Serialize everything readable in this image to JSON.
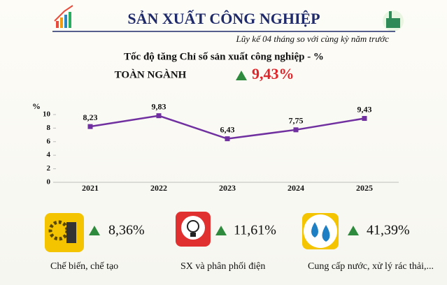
{
  "header": {
    "title": "SẢN XUẤT CÔNG NGHIỆP",
    "subtitle": "Lũy kế 04 tháng so với cùng kỳ năm trước"
  },
  "headline": {
    "label": "TOÀN NGÀNH",
    "value": "9,43%"
  },
  "chart_data": {
    "type": "line",
    "title": "Tốc độ tăng Chỉ số sản xuất công nghiệp - %",
    "y_unit": "%",
    "categories": [
      "2021",
      "2022",
      "2023",
      "2024",
      "2025"
    ],
    "values": [
      8.23,
      9.83,
      6.43,
      7.75,
      9.43
    ],
    "value_labels": [
      "8,23",
      "9,83",
      "6,43",
      "7,75",
      "9,43"
    ],
    "color": "#7030a0",
    "ylim": [
      0,
      10
    ],
    "yticks": [
      0,
      2,
      4,
      6,
      8,
      10
    ],
    "grid": false
  },
  "sectors": [
    {
      "value": "8,36%",
      "name": "Chế biến, chế tạo"
    },
    {
      "value": "11,61%",
      "name": "SX và phân phối điện"
    },
    {
      "value": "41,39%",
      "name": "Cung cấp nước, xử lý rác thải,..."
    }
  ]
}
